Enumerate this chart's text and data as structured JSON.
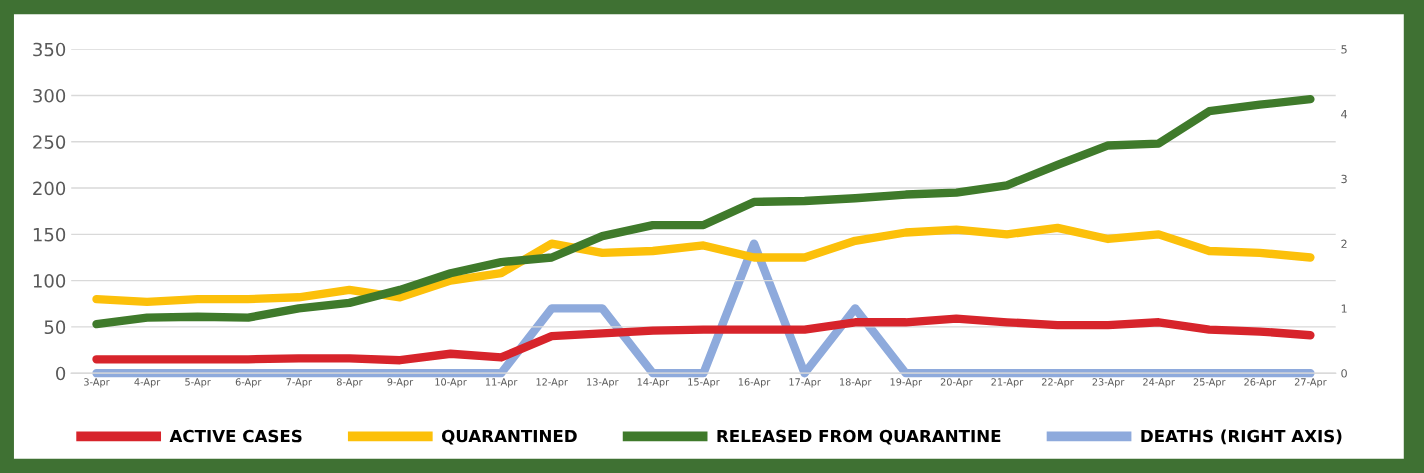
{
  "chart_data": {
    "type": "line",
    "categories": [
      "3-Apr",
      "4-Apr",
      "5-Apr",
      "6-Apr",
      "7-Apr",
      "8-Apr",
      "9-Apr",
      "10-Apr",
      "11-Apr",
      "12-Apr",
      "13-Apr",
      "14-Apr",
      "15-Apr",
      "16-Apr",
      "17-Apr",
      "18-Apr",
      "19-Apr",
      "20-Apr",
      "21-Apr",
      "22-Apr",
      "23-Apr",
      "24-Apr",
      "25-Apr",
      "26-Apr",
      "27-Apr"
    ],
    "series": [
      {
        "name": "ACTIVE CASES",
        "color": "#d7242b",
        "values": [
          15,
          15,
          15,
          15,
          16,
          16,
          14,
          21,
          17,
          40,
          43,
          46,
          47,
          47,
          47,
          55,
          55,
          59,
          55,
          52,
          52,
          55,
          47,
          45,
          41
        ]
      },
      {
        "name": "QUARANTINED",
        "color": "#fcc00a",
        "values": [
          80,
          77,
          80,
          80,
          82,
          90,
          82,
          100,
          108,
          140,
          130,
          132,
          138,
          125,
          125,
          143,
          152,
          155,
          150,
          157,
          145,
          150,
          132,
          130,
          125
        ]
      },
      {
        "name": "RELEASED FROM QUARANTINE",
        "color": "#3f7a2b",
        "values": [
          53,
          60,
          61,
          60,
          70,
          76,
          90,
          108,
          120,
          125,
          148,
          160,
          160,
          185,
          186,
          189,
          193,
          195,
          203,
          225,
          246,
          248,
          283,
          290,
          296
        ]
      },
      {
        "name": "DEATHS (RIGHT AXIS)",
        "color": "#8eaadc",
        "axis": "y2",
        "values": [
          0,
          0,
          0,
          0,
          0,
          0,
          0,
          0,
          0,
          1,
          1,
          0,
          0,
          2,
          0,
          1,
          0,
          0,
          0,
          0,
          0,
          0,
          0,
          0,
          0
        ]
      }
    ],
    "ylim": [
      0,
      350
    ],
    "yticks": [
      0,
      50,
      100,
      150,
      200,
      250,
      300,
      350
    ],
    "y2lim": [
      0,
      5
    ],
    "y2ticks": [
      0,
      1,
      2,
      3,
      4,
      5
    ],
    "grid": "y",
    "legend": "bottom",
    "marker": "none",
    "line_style": "solid"
  }
}
